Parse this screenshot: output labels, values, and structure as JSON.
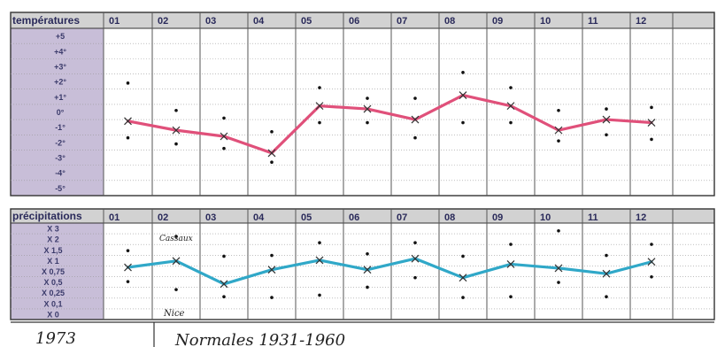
{
  "chart_data": [
    {
      "type": "line",
      "header": "températures",
      "categories": [
        "01",
        "02",
        "03",
        "04",
        "05",
        "06",
        "07",
        "08",
        "09",
        "10",
        "11",
        "12"
      ],
      "row_labels": [
        "+5",
        "+4°",
        "+3°",
        "+2°",
        "+1°",
        "0°",
        "-1°",
        "-2°",
        "-3°",
        "-4°",
        "-5°"
      ],
      "ylim": [
        -5.5,
        5.5
      ],
      "series": [
        {
          "values": [
            -0.6,
            -1.2,
            -1.6,
            -2.7,
            0.4,
            0.2,
            -0.5,
            1.1,
            0.4,
            -1.2,
            -0.5,
            -0.7
          ],
          "color": "#e0507a",
          "marker": "x"
        }
      ],
      "upper_dots": [
        1.9,
        0.1,
        -0.4,
        -1.3,
        1.6,
        0.9,
        0.9,
        2.6,
        1.6,
        0.1,
        0.2,
        0.3
      ],
      "lower_dots": [
        -1.7,
        -2.1,
        -2.4,
        -3.3,
        -0.7,
        -0.7,
        -1.7,
        -0.7,
        -0.7,
        -1.9,
        -1.5,
        -1.8
      ]
    },
    {
      "type": "line",
      "header": "précipitations",
      "categories": [
        "01",
        "02",
        "03",
        "04",
        "05",
        "06",
        "07",
        "08",
        "09",
        "10",
        "11",
        "12"
      ],
      "row_labels": [
        "X 3",
        "X 2",
        "X 1,5",
        "X 1",
        "X 0,75",
        "X 0,5",
        "X 0,25",
        "X 0,1",
        "X 0"
      ],
      "series": [
        {
          "values": [
            0.5,
            1.3,
            -1.6,
            0.2,
            1.4,
            0.2,
            1.6,
            -0.8,
            0.9,
            0.4,
            -0.3,
            1.2
          ],
          "color": "#30a8c8",
          "marker": "x"
        }
      ],
      "upper_dots": [
        2.6,
        4.4,
        1.9,
        2.0,
        3.6,
        2.2,
        3.6,
        1.9,
        3.4,
        5.1,
        2.0,
        3.4
      ],
      "lower_dots": [
        -1.3,
        -2.3,
        -3.2,
        -3.3,
        -3.0,
        -2.0,
        -0.8,
        -3.3,
        -3.2,
        -1.4,
        -3.2,
        -0.7
      ],
      "annotations": [
        "Cassaux",
        "Nice"
      ]
    }
  ],
  "footer": {
    "year": "1973",
    "normals": "Normales 1931-1960"
  },
  "colors": {
    "label_column": "#c8bed8",
    "temperature_line": "#e0507a",
    "precipitation_line": "#30a8c8",
    "header_row": "#d2d2d2"
  }
}
